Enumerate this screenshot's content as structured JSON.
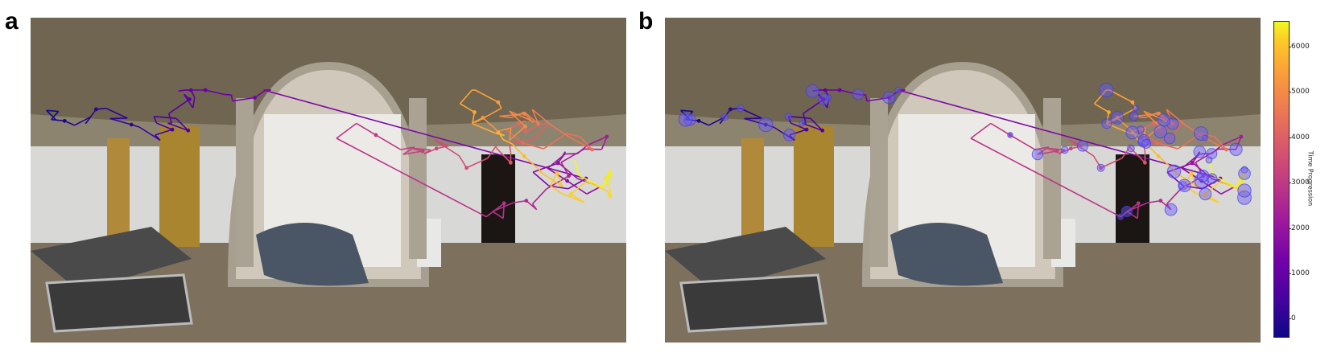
{
  "panels": [
    {
      "letter": "a"
    },
    {
      "letter": "b"
    }
  ],
  "colorbar": {
    "label": "Time Progression",
    "ticks": [
      "0",
      "1000",
      "2000",
      "3000",
      "4000",
      "5000",
      "6000"
    ],
    "tick_values": [
      0,
      1000,
      2000,
      3000,
      4000,
      5000,
      6000
    ],
    "range": [
      0,
      6600
    ],
    "colormap": "plasma"
  },
  "chart_data": {
    "type": "scatter",
    "title": "",
    "colors": {
      "early": "#2a0593",
      "mid": "#b5367a",
      "late": "#f89441",
      "end": "#f0f921",
      "fixation": "#6a5cff"
    }
  }
}
